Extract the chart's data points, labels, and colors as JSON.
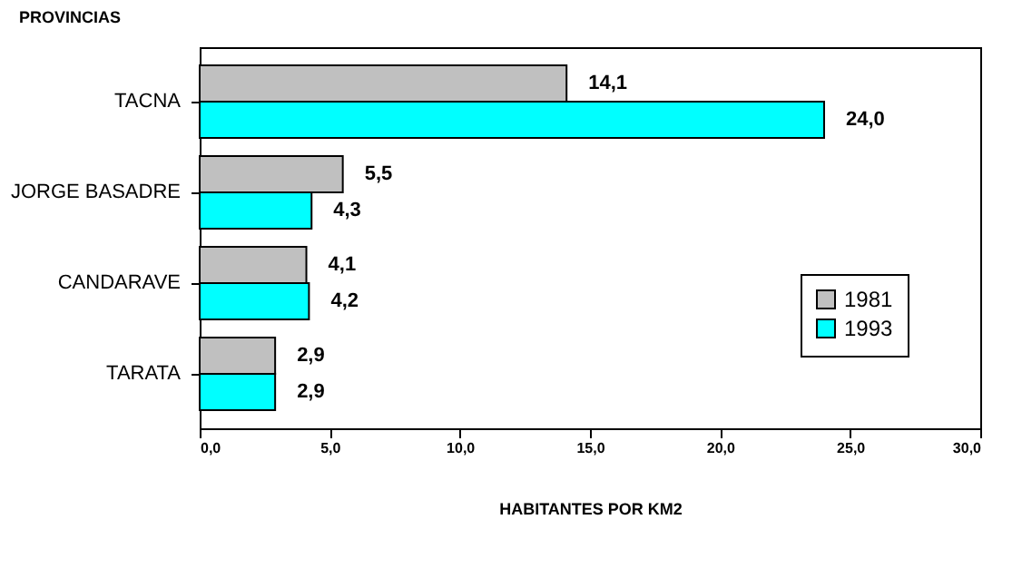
{
  "chart_data": {
    "type": "bar",
    "orientation": "horizontal",
    "ylabel": "PROVINCIAS",
    "xlabel": "HABITANTES POR KM2",
    "categories": [
      "TACNA",
      "JORGE BASADRE",
      "CANDARAVE",
      "TARATA"
    ],
    "series": [
      {
        "name": "1981",
        "color": "#c0c0c0",
        "values": [
          14.1,
          5.5,
          4.1,
          2.9
        ],
        "value_labels": [
          "14,1",
          "5,5",
          "4,1",
          "2,9"
        ]
      },
      {
        "name": "1993",
        "color": "#00ffff",
        "values": [
          24.0,
          4.3,
          4.2,
          2.9
        ],
        "value_labels": [
          "24,0",
          "4,3",
          "4,2",
          "2,9"
        ]
      }
    ],
    "xlim": [
      0,
      30
    ],
    "xticks": [
      {
        "value": 0,
        "label": "0,0"
      },
      {
        "value": 5,
        "label": "5,0"
      },
      {
        "value": 10,
        "label": "10,0"
      },
      {
        "value": 15,
        "label": "15,0"
      },
      {
        "value": 20,
        "label": "20,0"
      },
      {
        "value": 25,
        "label": "25,0"
      },
      {
        "value": 30,
        "label": "30,0"
      }
    ],
    "legend": "bottom right"
  }
}
